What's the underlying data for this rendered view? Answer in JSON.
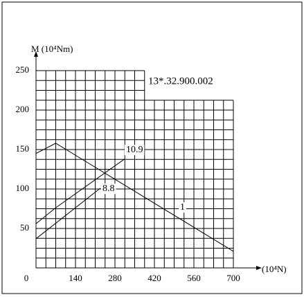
{
  "chart_data": {
    "type": "line",
    "code": "13*.32.900.002",
    "y_label": "M (10⁴Nm)",
    "x_label": "(10⁴N)",
    "xlim": [
      0,
      700
    ],
    "ylim": [
      0,
      250
    ],
    "xticks": [
      0,
      140,
      280,
      420,
      560,
      700
    ],
    "yticks": [
      50,
      100,
      150,
      200,
      250
    ],
    "grid": true,
    "color": "#000000",
    "series": [
      {
        "name": "1",
        "x": [
          0,
          70,
          700
        ],
        "values": [
          145,
          158,
          21
        ]
      },
      {
        "name": "10.9",
        "x": [
          0,
          69,
          314
        ],
        "values": [
          56,
          76,
          138
        ]
      },
      {
        "name": "8.8",
        "x": [
          0,
          228
        ],
        "values": [
          37,
          101
        ]
      }
    ]
  }
}
